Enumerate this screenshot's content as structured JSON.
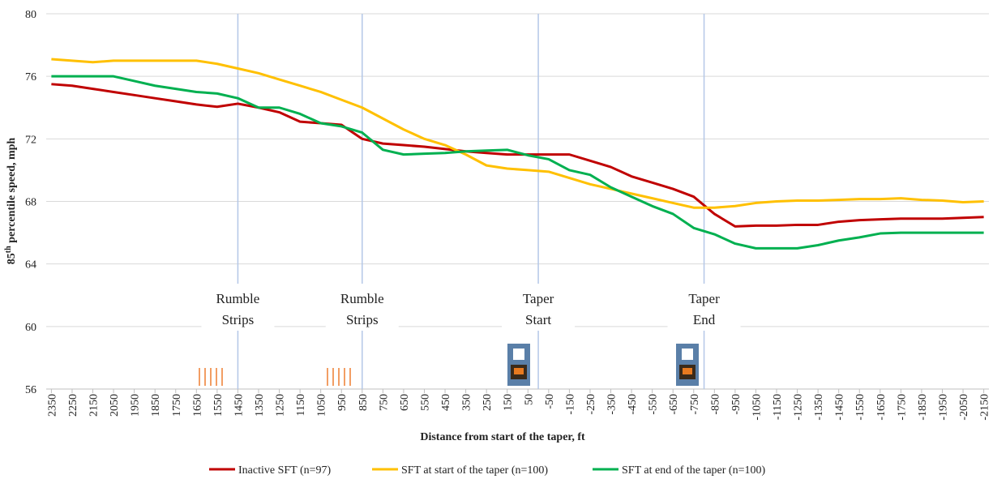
{
  "chart_data": {
    "type": "line",
    "ylabel": [
      "85",
      "th",
      " percentile speed, mph"
    ],
    "xlabel": "Distance from start of the taper, ft",
    "x": [
      2350,
      2250,
      2150,
      2050,
      1950,
      1850,
      1750,
      1650,
      1550,
      1450,
      1350,
      1250,
      1150,
      1050,
      950,
      850,
      750,
      650,
      550,
      450,
      350,
      250,
      150,
      50,
      -50,
      -150,
      -250,
      -350,
      -450,
      -550,
      -650,
      -750,
      -850,
      -950,
      -1050,
      -1150,
      -1250,
      -1350,
      -1450,
      -1550,
      -1650,
      -1750,
      -1850,
      -1950,
      -2050,
      -2150
    ],
    "xticks": [
      2350,
      2250,
      2150,
      2050,
      1950,
      1850,
      1750,
      1650,
      1550,
      1450,
      1350,
      1250,
      1150,
      1050,
      950,
      850,
      750,
      650,
      550,
      450,
      350,
      250,
      150,
      50,
      -50,
      -150,
      -250,
      -350,
      -450,
      -550,
      -650,
      -750,
      -850,
      -950,
      -1050,
      -1150,
      -1250,
      -1350,
      -1450,
      -1550,
      -1650,
      -1750,
      -1850,
      -1950,
      -2050,
      -2150
    ],
    "xlim": [
      2375,
      -2175
    ],
    "ylim": [
      56,
      80
    ],
    "yticks": [
      56,
      60,
      64,
      68,
      72,
      76,
      80
    ],
    "grid": true,
    "series": [
      {
        "name": "Inactive SFT (n=97)",
        "color": "#c00000",
        "values": [
          75.5,
          75.4,
          75.2,
          75.0,
          74.8,
          74.6,
          74.4,
          74.2,
          74.05,
          74.25,
          74.0,
          73.7,
          73.1,
          73.0,
          72.9,
          72.0,
          71.7,
          71.6,
          71.5,
          71.35,
          71.2,
          71.1,
          71.0,
          71.0,
          71.0,
          71.0,
          70.6,
          70.2,
          69.6,
          69.2,
          68.8,
          68.3,
          67.2,
          66.4,
          66.45,
          66.45,
          66.5,
          66.5,
          66.7,
          66.8,
          66.85,
          66.9,
          66.9,
          66.9,
          66.95,
          67.0
        ]
      },
      {
        "name": "SFT at start of the taper (n=100)",
        "color": "#ffc000",
        "values": [
          77.1,
          77.0,
          76.9,
          77.0,
          77.0,
          77.0,
          77.0,
          77.0,
          76.8,
          76.5,
          76.2,
          75.8,
          75.4,
          75.0,
          74.5,
          74.0,
          73.3,
          72.6,
          72.0,
          71.6,
          71.0,
          70.3,
          70.1,
          70.0,
          69.9,
          69.5,
          69.1,
          68.8,
          68.5,
          68.2,
          67.9,
          67.6,
          67.6,
          67.7,
          67.9,
          68.0,
          68.05,
          68.05,
          68.1,
          68.15,
          68.15,
          68.2,
          68.1,
          68.05,
          67.95,
          68.0
        ]
      },
      {
        "name": "SFT at end of the taper (n=100)",
        "color": "#00b050",
        "values": [
          76.0,
          76.0,
          76.0,
          76.0,
          75.7,
          75.4,
          75.2,
          75.0,
          74.9,
          74.6,
          74.0,
          74.0,
          73.6,
          73.0,
          72.8,
          72.4,
          71.3,
          71.0,
          71.05,
          71.1,
          71.2,
          71.25,
          71.3,
          70.95,
          70.7,
          70.0,
          69.7,
          68.9,
          68.3,
          67.7,
          67.2,
          66.3,
          65.9,
          65.3,
          65.0,
          65.0,
          65.0,
          65.2,
          65.5,
          65.7,
          65.95,
          66.0,
          66.0,
          66.0,
          66.0,
          66.0
        ]
      }
    ],
    "annotations": [
      {
        "x": 1450,
        "label": [
          "Rumble",
          "Strips"
        ]
      },
      {
        "x": 850,
        "label": [
          "Rumble",
          "Strips"
        ]
      },
      {
        "x": 0,
        "label": [
          "Taper",
          "Start"
        ]
      },
      {
        "x": -800,
        "label": [
          "Taper",
          "End"
        ]
      }
    ]
  }
}
